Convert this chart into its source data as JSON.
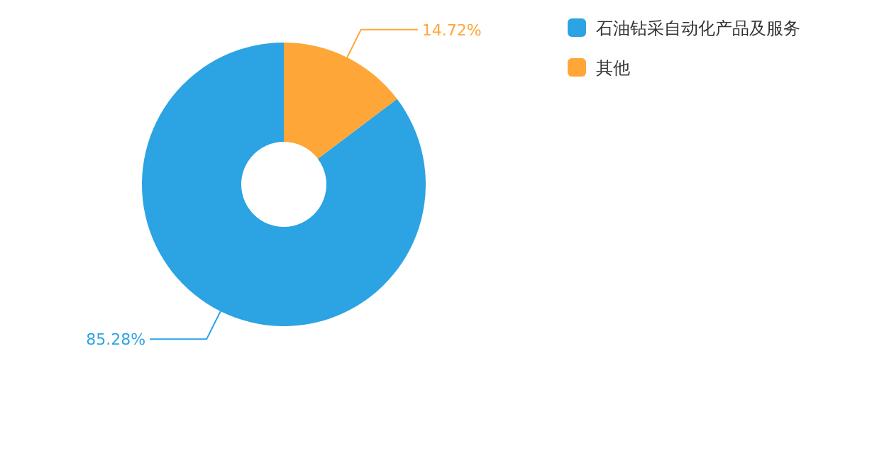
{
  "chart_data": {
    "type": "donut",
    "categories": [
      "石油钻采自动化产品及服务",
      "其他"
    ],
    "values": [
      85.28,
      14.72
    ],
    "colors": [
      "#2ca3e3",
      "#fea637"
    ],
    "value_labels": [
      "85.28%",
      "14.72%"
    ],
    "legend": "top right"
  }
}
